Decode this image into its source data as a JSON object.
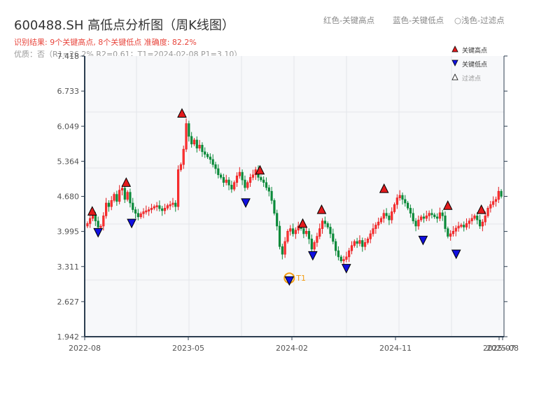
{
  "header": {
    "title": "600488.SH 高低点分析图（周K线图）",
    "summary": "识别结果: 9个关键高点, 8个关键低点  准确度: 82.2%",
    "quality": "优质：否（R1=26.2%  R2=0.61；T1=2024-02-08 P1=3.10）",
    "legend_high": "红色-关键高点",
    "legend_low": "蓝色-关键低点",
    "legend_filtered": "○浅色-过滤点"
  },
  "legend_box": {
    "high": "关键高点",
    "low": "关键低点",
    "filtered": "过滤点"
  },
  "colors": {
    "up": "#e31a1c",
    "down": "#0b8a3a",
    "high_marker": "#e31a1c",
    "low_marker": "#1010e0",
    "t1_ring": "#f39c12",
    "axis": "#2c3e50",
    "grid": "#e3e6ea",
    "plot_bg": "#f7f8fa"
  },
  "chart_data": {
    "type": "candlestick",
    "title": "600488.SH 高低点分析图（周K线图）",
    "xlabel": "",
    "ylabel": "",
    "ylim": [
      1.942,
      7.418
    ],
    "yticks": [
      "1.942",
      "2.627",
      "3.311",
      "3.995",
      "4.680",
      "5.364",
      "6.049",
      "6.733",
      "7.418"
    ],
    "xticks": [
      "2022-08",
      "2023-05",
      "2024-02",
      "2024-11",
      "2025-07",
      "2025-08"
    ],
    "grid": true,
    "key_highs": [
      {
        "x_frac": 0.018,
        "price": 4.3
      },
      {
        "x_frac": 0.099,
        "price": 4.86
      },
      {
        "x_frac": 0.232,
        "price": 6.21
      },
      {
        "x_frac": 0.418,
        "price": 5.1
      },
      {
        "x_frac": 0.52,
        "price": 4.06
      },
      {
        "x_frac": 0.565,
        "price": 4.33
      },
      {
        "x_frac": 0.714,
        "price": 4.74
      },
      {
        "x_frac": 0.866,
        "price": 4.41
      },
      {
        "x_frac": 0.946,
        "price": 4.33
      }
    ],
    "key_lows": [
      {
        "x_frac": 0.032,
        "price": 4.04
      },
      {
        "x_frac": 0.112,
        "price": 4.22
      },
      {
        "x_frac": 0.384,
        "price": 4.62
      },
      {
        "x_frac": 0.488,
        "price": 3.1,
        "label": "T1"
      },
      {
        "x_frac": 0.544,
        "price": 3.59
      },
      {
        "x_frac": 0.624,
        "price": 3.34
      },
      {
        "x_frac": 0.807,
        "price": 3.89
      },
      {
        "x_frac": 0.886,
        "price": 3.62
      }
    ],
    "annotation": {
      "label": "T1",
      "date": "2024-02-08",
      "price": 3.1
    },
    "series_closes": [
      4.15,
      4.25,
      4.32,
      4.2,
      4.08,
      4.1,
      4.3,
      4.55,
      4.48,
      4.6,
      4.72,
      4.58,
      4.8,
      4.84,
      4.62,
      4.76,
      4.55,
      4.42,
      4.35,
      4.28,
      4.34,
      4.38,
      4.4,
      4.42,
      4.45,
      4.48,
      4.5,
      4.44,
      4.4,
      4.45,
      4.5,
      4.52,
      4.55,
      4.48,
      5.2,
      5.3,
      5.6,
      6.1,
      5.85,
      5.7,
      5.78,
      5.62,
      5.68,
      5.55,
      5.5,
      5.45,
      5.4,
      5.3,
      5.22,
      5.1,
      5.05,
      4.95,
      5.0,
      4.9,
      4.82,
      4.95,
      5.08,
      5.15,
      5.0,
      4.85,
      4.95,
      5.05,
      5.1,
      5.2,
      5.05,
      5.0,
      4.95,
      4.85,
      4.78,
      4.6,
      4.35,
      4.1,
      3.7,
      3.55,
      3.8,
      4.0,
      4.05,
      3.95,
      4.02,
      4.1,
      4.05,
      3.95,
      4.0,
      3.85,
      3.65,
      3.78,
      3.9,
      4.05,
      4.2,
      4.15,
      4.08,
      3.95,
      3.8,
      3.62,
      3.5,
      3.42,
      3.45,
      3.5,
      3.62,
      3.72,
      3.8,
      3.76,
      3.82,
      3.7,
      3.78,
      3.85,
      3.95,
      4.05,
      4.12,
      4.18,
      4.25,
      4.35,
      4.3,
      4.22,
      4.38,
      4.52,
      4.65,
      4.7,
      4.62,
      4.55,
      4.45,
      4.35,
      4.2,
      4.1,
      4.22,
      4.28,
      4.25,
      4.3,
      4.35,
      4.32,
      4.28,
      4.25,
      4.36,
      4.3,
      4.05,
      3.9,
      3.95,
      4.0,
      4.06,
      4.1,
      4.12,
      4.08,
      4.15,
      4.2,
      4.25,
      4.3,
      4.22,
      4.1,
      4.18,
      4.3,
      4.45,
      4.52,
      4.58,
      4.62,
      4.78,
      4.68
    ]
  }
}
